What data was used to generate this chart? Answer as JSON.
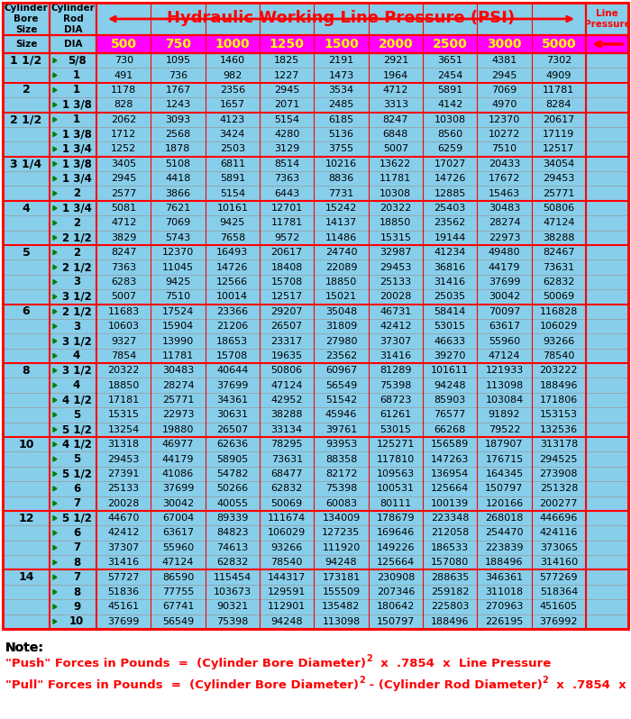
{
  "title": "Hydraulic Working Line Pressure (PSI)",
  "pressures": [
    "500",
    "750",
    "1000",
    "1250",
    "1500",
    "2000",
    "2500",
    "3000",
    "5000"
  ],
  "rows": [
    [
      "1 1/2",
      "5/8",
      730,
      1095,
      1460,
      1825,
      2191,
      2921,
      3651,
      4381,
      7302
    ],
    [
      "",
      "1",
      491,
      736,
      982,
      1227,
      1473,
      1964,
      2454,
      2945,
      4909
    ],
    [
      "2",
      "1",
      1178,
      1767,
      2356,
      2945,
      3534,
      4712,
      5891,
      7069,
      11781
    ],
    [
      "",
      "1 3/8",
      828,
      1243,
      1657,
      2071,
      2485,
      3313,
      4142,
      4970,
      8284
    ],
    [
      "2 1/2",
      "1",
      2062,
      3093,
      4123,
      5154,
      6185,
      8247,
      10308,
      12370,
      20617
    ],
    [
      "",
      "1 3/8",
      1712,
      2568,
      3424,
      4280,
      5136,
      6848,
      8560,
      10272,
      17119
    ],
    [
      "",
      "1 3/4",
      1252,
      1878,
      2503,
      3129,
      3755,
      5007,
      6259,
      7510,
      12517
    ],
    [
      "3 1/4",
      "1 3/8",
      3405,
      5108,
      6811,
      8514,
      10216,
      13622,
      17027,
      20433,
      34054
    ],
    [
      "",
      "1 3/4",
      2945,
      4418,
      5891,
      7363,
      8836,
      11781,
      14726,
      17672,
      29453
    ],
    [
      "",
      "2",
      2577,
      3866,
      5154,
      6443,
      7731,
      10308,
      12885,
      15463,
      25771
    ],
    [
      "4",
      "1 3/4",
      5081,
      7621,
      10161,
      12701,
      15242,
      20322,
      25403,
      30483,
      50806
    ],
    [
      "",
      "2",
      4712,
      7069,
      9425,
      11781,
      14137,
      18850,
      23562,
      28274,
      47124
    ],
    [
      "",
      "2 1/2",
      3829,
      5743,
      7658,
      9572,
      11486,
      15315,
      19144,
      22973,
      38288
    ],
    [
      "5",
      "2",
      8247,
      12370,
      16493,
      20617,
      24740,
      32987,
      41234,
      49480,
      82467
    ],
    [
      "",
      "2 1/2",
      7363,
      11045,
      14726,
      18408,
      22089,
      29453,
      36816,
      44179,
      73631
    ],
    [
      "",
      "3",
      6283,
      9425,
      12566,
      15708,
      18850,
      25133,
      31416,
      37699,
      62832
    ],
    [
      "",
      "3 1/2",
      5007,
      7510,
      10014,
      12517,
      15021,
      20028,
      25035,
      30042,
      50069
    ],
    [
      "6",
      "2 1/2",
      11683,
      17524,
      23366,
      29207,
      35048,
      46731,
      58414,
      70097,
      116828
    ],
    [
      "",
      "3",
      10603,
      15904,
      21206,
      26507,
      31809,
      42412,
      53015,
      63617,
      106029
    ],
    [
      "",
      "3 1/2",
      9327,
      13990,
      18653,
      23317,
      27980,
      37307,
      46633,
      55960,
      93266
    ],
    [
      "",
      "4",
      7854,
      11781,
      15708,
      19635,
      23562,
      31416,
      39270,
      47124,
      78540
    ],
    [
      "8",
      "3 1/2",
      20322,
      30483,
      40644,
      50806,
      60967,
      81289,
      101611,
      121933,
      203222
    ],
    [
      "",
      "4",
      18850,
      28274,
      37699,
      47124,
      56549,
      75398,
      94248,
      113098,
      188496
    ],
    [
      "",
      "4 1/2",
      17181,
      25771,
      34361,
      42952,
      51542,
      68723,
      85903,
      103084,
      171806
    ],
    [
      "",
      "5",
      15315,
      22973,
      30631,
      38288,
      45946,
      61261,
      76577,
      91892,
      153153
    ],
    [
      "",
      "5 1/2",
      13254,
      19880,
      26507,
      33134,
      39761,
      53015,
      66268,
      79522,
      132536
    ],
    [
      "10",
      "4 1/2",
      31318,
      46977,
      62636,
      78295,
      93953,
      125271,
      156589,
      187907,
      313178
    ],
    [
      "",
      "5",
      29453,
      44179,
      58905,
      73631,
      88358,
      117810,
      147263,
      176715,
      294525
    ],
    [
      "",
      "5 1/2",
      27391,
      41086,
      54782,
      68477,
      82172,
      109563,
      136954,
      164345,
      273908
    ],
    [
      "",
      "6",
      25133,
      37699,
      50266,
      62832,
      75398,
      100531,
      125664,
      150797,
      251328
    ],
    [
      "",
      "7",
      20028,
      30042,
      40055,
      50069,
      60083,
      80111,
      100139,
      120166,
      200277
    ],
    [
      "12",
      "5 1/2",
      44670,
      67004,
      89339,
      111674,
      134009,
      178679,
      223348,
      268018,
      446696
    ],
    [
      "",
      "6",
      42412,
      63617,
      84823,
      106029,
      127235,
      169646,
      212058,
      254470,
      424116
    ],
    [
      "",
      "7",
      37307,
      55960,
      74613,
      93266,
      111920,
      149226,
      186533,
      223839,
      373065
    ],
    [
      "",
      "8",
      31416,
      47124,
      62832,
      78540,
      94248,
      125664,
      157080,
      188496,
      314160
    ],
    [
      "14",
      "7",
      57727,
      86590,
      115454,
      144317,
      173181,
      230908,
      288635,
      346361,
      577269
    ],
    [
      "",
      "8",
      51836,
      77755,
      103673,
      129591,
      155509,
      207346,
      259182,
      311018,
      518364
    ],
    [
      "",
      "9",
      45161,
      67741,
      90321,
      112901,
      135482,
      180642,
      225803,
      270963,
      451605
    ],
    [
      "",
      "10",
      37699,
      56549,
      75398,
      94248,
      113098,
      150797,
      188496,
      226195,
      376992
    ]
  ],
  "group_starts": [
    0,
    2,
    4,
    7,
    10,
    13,
    17,
    21,
    26,
    31,
    35
  ],
  "bg_color": "#87CEEB",
  "pressure_row_bg": "#FF00FF",
  "pressure_text_color": "#FFFF00",
  "title_color": "#FF0000",
  "arrow_color": "#FF0000",
  "line_pressure_color": "#FF0000",
  "border_color": "#FF0000",
  "formula_color": "#FF0000",
  "green_arrow_color": "#008000",
  "note_color": "#000000"
}
